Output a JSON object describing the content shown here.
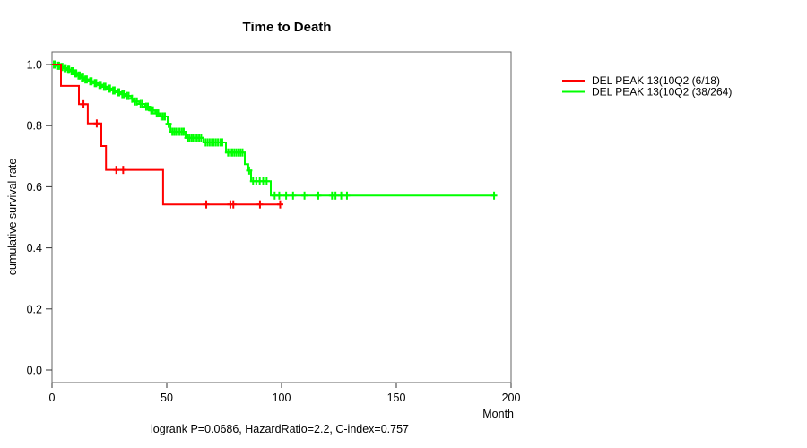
{
  "chart_data": {
    "type": "line",
    "subtype": "kaplan-meier-step",
    "title": "Time to Death",
    "xlabel": "Month",
    "ylabel": "cumulative survival rate",
    "annotation": "logrank P=0.0686, HazardRatio=2.2, C-index=0.757",
    "xlim": [
      0,
      200
    ],
    "ylim": [
      0,
      1
    ],
    "grid": false,
    "legend_position": "right-outside",
    "axis_color": "#666666",
    "x_ticks": {
      "values": [
        0,
        50,
        100,
        150,
        200
      ],
      "labels": [
        "0",
        "50",
        "100",
        "150",
        "200"
      ]
    },
    "y_ticks": {
      "values": [
        0,
        0.2,
        0.4,
        0.6,
        0.8,
        1.0
      ],
      "labels": [
        "0.0",
        "0.2",
        "0.4",
        "0.6",
        "0.8",
        "1.0"
      ]
    },
    "series": [
      {
        "name": "DEL PEAK 13(10Q2 (6/18)",
        "color": "#ff0000",
        "events_over_n": "6/18",
        "steps": [
          [
            0,
            1.0
          ],
          [
            3.9,
            0.93
          ],
          [
            11.7,
            0.87
          ],
          [
            15.6,
            0.807
          ],
          [
            21.5,
            0.733
          ],
          [
            23.5,
            0.655
          ],
          [
            48.4,
            0.542
          ]
        ],
        "end_month": 99.6,
        "censors": [
          [
            13.7,
            0.87
          ],
          [
            19.5,
            0.807
          ],
          [
            28,
            0.655
          ],
          [
            31,
            0.655
          ],
          [
            67.2,
            0.542
          ],
          [
            77.7,
            0.542
          ],
          [
            79,
            0.542
          ],
          [
            90.6,
            0.542
          ],
          [
            99.4,
            0.542
          ]
        ]
      },
      {
        "name": "DEL PEAK 13(10Q2 (38/264)",
        "color": "#00ff00",
        "events_over_n": "38/264",
        "steps": [
          [
            0,
            1.0
          ],
          [
            2,
            0.996
          ],
          [
            3.5,
            0.992
          ],
          [
            5,
            0.988
          ],
          [
            6.5,
            0.983
          ],
          [
            8,
            0.978
          ],
          [
            9.5,
            0.971
          ],
          [
            11,
            0.964
          ],
          [
            12.5,
            0.957
          ],
          [
            14,
            0.951
          ],
          [
            16,
            0.945
          ],
          [
            18,
            0.939
          ],
          [
            20,
            0.933
          ],
          [
            22,
            0.927
          ],
          [
            24,
            0.921
          ],
          [
            26,
            0.915
          ],
          [
            28,
            0.909
          ],
          [
            30,
            0.903
          ],
          [
            32,
            0.897
          ],
          [
            34.5,
            0.888
          ],
          [
            35.5,
            0.879
          ],
          [
            38,
            0.871
          ],
          [
            40.5,
            0.862
          ],
          [
            42.5,
            0.85
          ],
          [
            45,
            0.84
          ],
          [
            47,
            0.83
          ],
          [
            50.4,
            0.806
          ],
          [
            51.6,
            0.78
          ],
          [
            58.2,
            0.76
          ],
          [
            66,
            0.745
          ],
          [
            75.8,
            0.712
          ],
          [
            84,
            0.674
          ],
          [
            85.5,
            0.653
          ],
          [
            86.7,
            0.618
          ],
          [
            95.3,
            0.571
          ]
        ],
        "end_month": 193,
        "censors": [
          [
            0.8,
            1.0
          ],
          [
            1.4,
            1.0
          ],
          [
            2.6,
            0.996
          ],
          [
            3.1,
            0.996
          ],
          [
            4.0,
            0.992
          ],
          [
            4.6,
            0.992
          ],
          [
            5.5,
            0.988
          ],
          [
            6.0,
            0.988
          ],
          [
            7.0,
            0.983
          ],
          [
            7.5,
            0.983
          ],
          [
            8.5,
            0.978
          ],
          [
            9.0,
            0.978
          ],
          [
            10.0,
            0.971
          ],
          [
            10.6,
            0.971
          ],
          [
            11.5,
            0.964
          ],
          [
            12.1,
            0.964
          ],
          [
            13.0,
            0.957
          ],
          [
            13.6,
            0.957
          ],
          [
            14.5,
            0.951
          ],
          [
            15.2,
            0.951
          ],
          [
            16.6,
            0.945
          ],
          [
            17.3,
            0.945
          ],
          [
            18.6,
            0.939
          ],
          [
            19.3,
            0.939
          ],
          [
            20.6,
            0.933
          ],
          [
            21.3,
            0.933
          ],
          [
            22.6,
            0.927
          ],
          [
            23.3,
            0.927
          ],
          [
            24.6,
            0.921
          ],
          [
            25.3,
            0.921
          ],
          [
            26.6,
            0.915
          ],
          [
            27.3,
            0.915
          ],
          [
            28.6,
            0.909
          ],
          [
            29.3,
            0.909
          ],
          [
            30.6,
            0.903
          ],
          [
            31.3,
            0.903
          ],
          [
            32.6,
            0.897
          ],
          [
            33.4,
            0.897
          ],
          [
            34.9,
            0.888
          ],
          [
            36.2,
            0.879
          ],
          [
            37.0,
            0.879
          ],
          [
            38.6,
            0.871
          ],
          [
            39.4,
            0.871
          ],
          [
            41.0,
            0.862
          ],
          [
            41.8,
            0.862
          ],
          [
            43.2,
            0.85
          ],
          [
            44.0,
            0.85
          ],
          [
            45.6,
            0.84
          ],
          [
            46.3,
            0.84
          ],
          [
            47.6,
            0.83
          ],
          [
            48.4,
            0.83
          ],
          [
            49.2,
            0.83
          ],
          [
            50.8,
            0.806
          ],
          [
            52.4,
            0.78
          ],
          [
            53.2,
            0.78
          ],
          [
            54.0,
            0.78
          ],
          [
            54.9,
            0.78
          ],
          [
            55.7,
            0.78
          ],
          [
            56.6,
            0.78
          ],
          [
            57.4,
            0.78
          ],
          [
            59.0,
            0.76
          ],
          [
            59.8,
            0.76
          ],
          [
            60.7,
            0.76
          ],
          [
            61.5,
            0.76
          ],
          [
            62.4,
            0.76
          ],
          [
            63.2,
            0.76
          ],
          [
            64.1,
            0.76
          ],
          [
            65.0,
            0.76
          ],
          [
            66.9,
            0.745
          ],
          [
            67.8,
            0.745
          ],
          [
            68.7,
            0.745
          ],
          [
            69.6,
            0.745
          ],
          [
            70.5,
            0.745
          ],
          [
            71.4,
            0.745
          ],
          [
            72.3,
            0.745
          ],
          [
            73.3,
            0.745
          ],
          [
            74.2,
            0.745
          ],
          [
            76.7,
            0.712
          ],
          [
            77.6,
            0.712
          ],
          [
            78.5,
            0.712
          ],
          [
            79.4,
            0.712
          ],
          [
            80.3,
            0.712
          ],
          [
            81.2,
            0.712
          ],
          [
            82.1,
            0.712
          ],
          [
            83.0,
            0.712
          ],
          [
            85.9,
            0.653
          ],
          [
            87.6,
            0.618
          ],
          [
            89,
            0.618
          ],
          [
            90.5,
            0.618
          ],
          [
            92,
            0.618
          ],
          [
            93.5,
            0.618
          ],
          [
            97,
            0.571
          ],
          [
            99,
            0.571
          ],
          [
            102,
            0.571
          ],
          [
            105,
            0.571
          ],
          [
            110,
            0.571
          ],
          [
            116,
            0.571
          ],
          [
            122,
            0.571
          ],
          [
            123.5,
            0.571
          ],
          [
            126,
            0.571
          ],
          [
            128.5,
            0.571
          ],
          [
            192.6,
            0.571
          ]
        ]
      }
    ]
  }
}
